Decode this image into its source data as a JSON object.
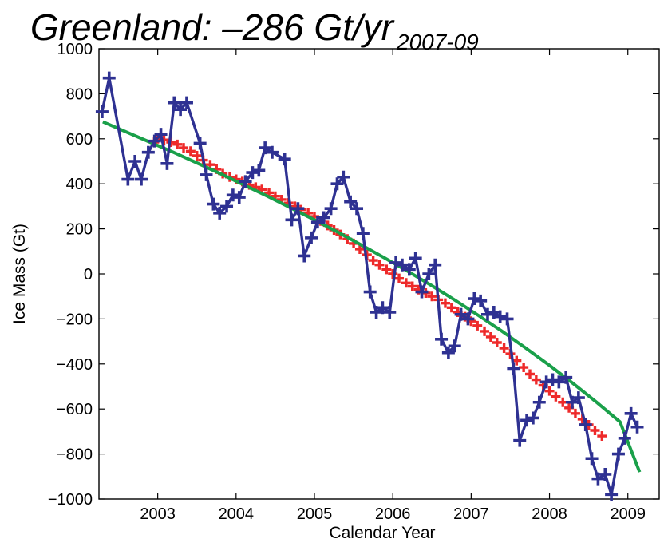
{
  "chart_data": {
    "type": "line",
    "title": "Greenland: –286 Gt/yr",
    "title_subscript": "2007-09",
    "xlabel": "Calendar Year",
    "ylabel": "Ice Mass (Gt)",
    "xlim": [
      2002.25,
      2009.4
    ],
    "ylim": [
      -1000,
      1000
    ],
    "x_ticks": [
      2003,
      2004,
      2005,
      2006,
      2007,
      2008,
      2009
    ],
    "y_ticks": [
      -1000,
      -800,
      -600,
      -400,
      -200,
      0,
      200,
      400,
      600,
      800,
      1000
    ],
    "y_tick_labels": [
      "−1000",
      "−800",
      "−600",
      "−400",
      "−200",
      "0",
      "200",
      "400",
      "600",
      "800",
      "1000"
    ],
    "grid": false,
    "legend": "none",
    "colors": {
      "monthly": "#2e3192",
      "smoothed": "#ee2a2a",
      "fit": "#1aa04a"
    },
    "series": [
      {
        "marker": "plus",
        "style": "line+markers",
        "x": [
          2002.29,
          2002.38,
          2002.62,
          2002.71,
          2002.79,
          2002.88,
          2002.96,
          2003.04,
          2003.12,
          2003.21,
          2003.29,
          2003.37,
          2003.54,
          2003.62,
          2003.71,
          2003.79,
          2003.88,
          2003.96,
          2004.04,
          2004.12,
          2004.21,
          2004.29,
          2004.37,
          2004.46,
          2004.62,
          2004.71,
          2004.79,
          2004.87,
          2004.96,
          2005.04,
          2005.12,
          2005.21,
          2005.29,
          2005.37,
          2005.46,
          2005.54,
          2005.62,
          2005.71,
          2005.79,
          2005.87,
          2005.96,
          2006.04,
          2006.12,
          2006.21,
          2006.29,
          2006.37,
          2006.46,
          2006.54,
          2006.62,
          2006.71,
          2006.79,
          2006.87,
          2006.96,
          2007.04,
          2007.12,
          2007.21,
          2007.29,
          2007.37,
          2007.46,
          2007.54,
          2007.62,
          2007.71,
          2007.79,
          2007.87,
          2007.96,
          2008.04,
          2008.12,
          2008.21,
          2008.29,
          2008.37,
          2008.46,
          2008.54,
          2008.62,
          2008.71,
          2008.79,
          2008.88,
          2008.96,
          2009.04,
          2009.12
        ],
        "y": [
          720,
          870,
          420,
          500,
          420,
          540,
          590,
          620,
          490,
          760,
          730,
          760,
          580,
          440,
          310,
          270,
          300,
          350,
          340,
          410,
          450,
          460,
          560,
          540,
          510,
          240,
          290,
          80,
          160,
          230,
          250,
          290,
          400,
          430,
          320,
          290,
          180,
          -80,
          -170,
          -150,
          -170,
          50,
          40,
          20,
          70,
          -80,
          0,
          40,
          -290,
          -350,
          -320,
          -180,
          -200,
          -110,
          -120,
          -180,
          -170,
          -190,
          -200,
          -420,
          -740,
          -650,
          -640,
          -570,
          -480,
          -470,
          -480,
          -460,
          -570,
          -550,
          -670,
          -820,
          -910,
          -890,
          -980,
          -800,
          -730,
          -620,
          -680
        ]
      },
      {
        "marker": "plus",
        "style": "markers",
        "x": [
          2003.0,
          2003.08,
          2003.17,
          2003.25,
          2003.33,
          2003.42,
          2003.5,
          2003.58,
          2003.67,
          2003.75,
          2003.83,
          2003.92,
          2004.0,
          2004.08,
          2004.17,
          2004.25,
          2004.33,
          2004.42,
          2004.5,
          2004.58,
          2004.67,
          2004.75,
          2004.83,
          2004.92,
          2005.0,
          2005.08,
          2005.17,
          2005.25,
          2005.33,
          2005.42,
          2005.5,
          2005.58,
          2005.67,
          2005.75,
          2005.83,
          2005.92,
          2006.0,
          2006.08,
          2006.17,
          2006.25,
          2006.33,
          2006.42,
          2006.5,
          2006.58,
          2006.67,
          2006.75,
          2006.83,
          2006.92,
          2007.0,
          2007.08,
          2007.17,
          2007.25,
          2007.33,
          2007.42,
          2007.5,
          2007.58,
          2007.67,
          2007.75,
          2007.83,
          2007.92,
          2008.0,
          2008.08,
          2008.17,
          2008.25,
          2008.33,
          2008.42,
          2008.5,
          2008.58,
          2008.67
        ],
        "y": [
          600,
          595,
          585,
          575,
          560,
          545,
          525,
          505,
          485,
          465,
          445,
          430,
          420,
          410,
          395,
          385,
          375,
          360,
          345,
          330,
          315,
          300,
          285,
          270,
          255,
          235,
          215,
          195,
          175,
          155,
          135,
          110,
          85,
          60,
          40,
          20,
          0,
          -20,
          -40,
          -55,
          -70,
          -85,
          -100,
          -115,
          -130,
          -150,
          -170,
          -190,
          -210,
          -230,
          -255,
          -280,
          -305,
          -330,
          -355,
          -385,
          -415,
          -445,
          -470,
          -495,
          -520,
          -545,
          -570,
          -595,
          -620,
          -645,
          -670,
          -695,
          -720
        ]
      },
      {
        "marker": "none",
        "style": "line",
        "x": [
          2002.3,
          2002.6,
          2002.9,
          2003.2,
          2003.5,
          2003.8,
          2004.1,
          2004.4,
          2004.7,
          2005.0,
          2005.3,
          2005.6,
          2005.9,
          2006.2,
          2006.5,
          2006.8,
          2007.1,
          2007.4,
          2007.7,
          2008.0,
          2008.3,
          2008.6,
          2008.9,
          2009.15
        ],
        "y": [
          675,
          630,
          585,
          540,
          493,
          445,
          395,
          345,
          293,
          240,
          185,
          128,
          70,
          10,
          -53,
          -118,
          -186,
          -256,
          -330,
          -406,
          -486,
          -570,
          -657,
          -880
        ]
      }
    ]
  }
}
